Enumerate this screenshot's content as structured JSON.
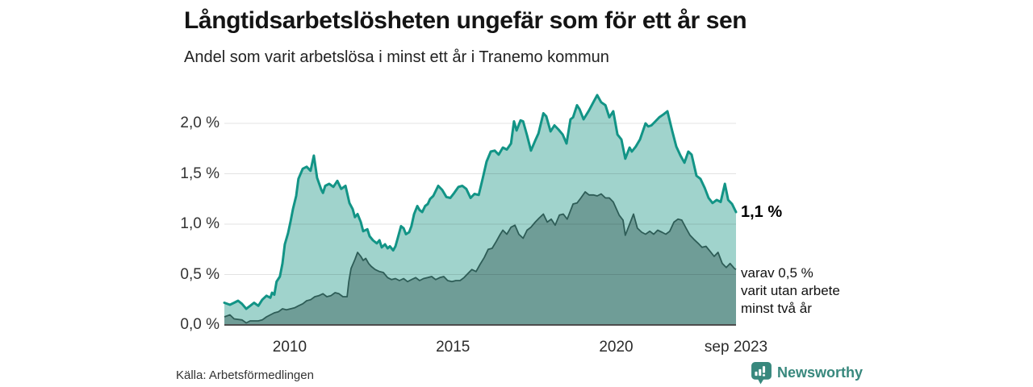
{
  "header": {
    "title": "Långtidsarbetslösheten ungefär som för ett år sen",
    "subtitle": "Andel som varit arbetslösa i minst ett år i Tranemo kommun"
  },
  "annotations": {
    "end_value": "1,1 %",
    "varav_line1": "varav 0,5 %",
    "varav_line2": "varit utan arbete",
    "varav_line3": "minst två år"
  },
  "footer": {
    "source": "Källa: Arbetsförmedlingen",
    "brand": "Newsworthy"
  },
  "colors": {
    "line_1yr": "#129486",
    "fill_1yr": "#a0d3cc",
    "line_2yr": "#2e5d57",
    "fill_2yr": "#6f9d97",
    "gridline": "rgba(0,0,0,0.11)",
    "axis_line": "#4d4d4d",
    "brand_teal": "#38887d"
  },
  "chart_data": {
    "type": "area",
    "title": "Långtidsarbetslösheten ungefär som för ett år sen",
    "subtitle": "Andel som varit arbetslösa i minst ett år i Tranemo kommun",
    "xlabel": "",
    "ylabel": "",
    "xlim": [
      2008.0,
      2023.67
    ],
    "ylim": [
      0,
      2.4
    ],
    "grid": true,
    "legend_position": "annotated-at-line-end",
    "y_ticks": [
      {
        "value": 0.0,
        "label": "0,0 %"
      },
      {
        "value": 0.5,
        "label": "0,5 %"
      },
      {
        "value": 1.0,
        "label": "1,0 %"
      },
      {
        "value": 1.5,
        "label": "1,5 %"
      },
      {
        "value": 2.0,
        "label": "2,0 %"
      }
    ],
    "x_ticks": [
      {
        "value": 2010,
        "label": "2010"
      },
      {
        "value": 2015,
        "label": "2015"
      },
      {
        "value": 2020,
        "label": "2020"
      },
      {
        "value": 2023.67,
        "label": "sep 2023"
      }
    ],
    "series": [
      {
        "name": "Andel arbetslösa minst ett år",
        "end_label": "1,1 %",
        "end_value": 1.1,
        "points": [
          [
            2008.0,
            0.22
          ],
          [
            2008.17,
            0.2
          ],
          [
            2008.3,
            0.22
          ],
          [
            2008.42,
            0.24
          ],
          [
            2008.54,
            0.21
          ],
          [
            2008.67,
            0.16
          ],
          [
            2008.79,
            0.19
          ],
          [
            2008.91,
            0.22
          ],
          [
            2009.04,
            0.19
          ],
          [
            2009.16,
            0.25
          ],
          [
            2009.29,
            0.29
          ],
          [
            2009.41,
            0.27
          ],
          [
            2009.46,
            0.32
          ],
          [
            2009.53,
            0.3
          ],
          [
            2009.6,
            0.43
          ],
          [
            2009.7,
            0.48
          ],
          [
            2009.78,
            0.61
          ],
          [
            2009.85,
            0.8
          ],
          [
            2009.95,
            0.91
          ],
          [
            2010.03,
            1.03
          ],
          [
            2010.1,
            1.15
          ],
          [
            2010.2,
            1.28
          ],
          [
            2010.27,
            1.45
          ],
          [
            2010.4,
            1.55
          ],
          [
            2010.52,
            1.57
          ],
          [
            2010.64,
            1.53
          ],
          [
            2010.74,
            1.68
          ],
          [
            2010.84,
            1.46
          ],
          [
            2010.97,
            1.34
          ],
          [
            2011.02,
            1.31
          ],
          [
            2011.09,
            1.38
          ],
          [
            2011.21,
            1.4
          ],
          [
            2011.34,
            1.37
          ],
          [
            2011.46,
            1.43
          ],
          [
            2011.58,
            1.35
          ],
          [
            2011.71,
            1.38
          ],
          [
            2011.83,
            1.21
          ],
          [
            2011.93,
            1.15
          ],
          [
            2012.0,
            1.07
          ],
          [
            2012.08,
            1.1
          ],
          [
            2012.18,
            1.02
          ],
          [
            2012.25,
            0.93
          ],
          [
            2012.38,
            0.95
          ],
          [
            2012.45,
            0.88
          ],
          [
            2012.55,
            0.84
          ],
          [
            2012.67,
            0.81
          ],
          [
            2012.75,
            0.84
          ],
          [
            2012.82,
            0.77
          ],
          [
            2012.92,
            0.8
          ],
          [
            2013.0,
            0.76
          ],
          [
            2013.07,
            0.78
          ],
          [
            2013.17,
            0.74
          ],
          [
            2013.24,
            0.78
          ],
          [
            2013.31,
            0.86
          ],
          [
            2013.41,
            0.98
          ],
          [
            2013.49,
            0.96
          ],
          [
            2013.56,
            0.9
          ],
          [
            2013.66,
            0.92
          ],
          [
            2013.73,
            0.98
          ],
          [
            2013.81,
            1.1
          ],
          [
            2013.91,
            1.18
          ],
          [
            2013.98,
            1.14
          ],
          [
            2014.06,
            1.12
          ],
          [
            2014.15,
            1.18
          ],
          [
            2014.23,
            1.2
          ],
          [
            2014.3,
            1.25
          ],
          [
            2014.4,
            1.28
          ],
          [
            2014.55,
            1.38
          ],
          [
            2014.67,
            1.34
          ],
          [
            2014.8,
            1.27
          ],
          [
            2014.92,
            1.26
          ],
          [
            2015.04,
            1.31
          ],
          [
            2015.17,
            1.37
          ],
          [
            2015.29,
            1.38
          ],
          [
            2015.41,
            1.35
          ],
          [
            2015.54,
            1.26
          ],
          [
            2015.66,
            1.3
          ],
          [
            2015.79,
            1.29
          ],
          [
            2015.91,
            1.45
          ],
          [
            2016.03,
            1.62
          ],
          [
            2016.16,
            1.72
          ],
          [
            2016.28,
            1.73
          ],
          [
            2016.4,
            1.69
          ],
          [
            2016.53,
            1.76
          ],
          [
            2016.65,
            1.74
          ],
          [
            2016.78,
            1.8
          ],
          [
            2016.87,
            2.02
          ],
          [
            2016.95,
            1.93
          ],
          [
            2017.07,
            2.03
          ],
          [
            2017.15,
            2.02
          ],
          [
            2017.27,
            1.88
          ],
          [
            2017.39,
            1.73
          ],
          [
            2017.52,
            1.83
          ],
          [
            2017.62,
            1.9
          ],
          [
            2017.77,
            2.1
          ],
          [
            2017.86,
            2.07
          ],
          [
            2017.99,
            1.92
          ],
          [
            2018.11,
            1.98
          ],
          [
            2018.23,
            1.94
          ],
          [
            2018.36,
            1.89
          ],
          [
            2018.48,
            1.8
          ],
          [
            2018.6,
            2.04
          ],
          [
            2018.68,
            2.06
          ],
          [
            2018.8,
            2.18
          ],
          [
            2018.88,
            2.14
          ],
          [
            2019.0,
            2.04
          ],
          [
            2019.17,
            2.13
          ],
          [
            2019.3,
            2.21
          ],
          [
            2019.42,
            2.28
          ],
          [
            2019.54,
            2.21
          ],
          [
            2019.67,
            2.18
          ],
          [
            2019.79,
            2.06
          ],
          [
            2019.91,
            2.12
          ],
          [
            2020.04,
            1.89
          ],
          [
            2020.16,
            1.84
          ],
          [
            2020.28,
            1.65
          ],
          [
            2020.41,
            1.76
          ],
          [
            2020.48,
            1.72
          ],
          [
            2020.6,
            1.77
          ],
          [
            2020.73,
            1.84
          ],
          [
            2020.9,
            2.0
          ],
          [
            2020.98,
            1.97
          ],
          [
            2021.08,
            1.98
          ],
          [
            2021.2,
            2.02
          ],
          [
            2021.32,
            2.06
          ],
          [
            2021.45,
            2.09
          ],
          [
            2021.57,
            2.12
          ],
          [
            2021.72,
            1.92
          ],
          [
            2021.84,
            1.77
          ],
          [
            2021.97,
            1.68
          ],
          [
            2022.09,
            1.61
          ],
          [
            2022.21,
            1.72
          ],
          [
            2022.31,
            1.69
          ],
          [
            2022.46,
            1.48
          ],
          [
            2022.58,
            1.45
          ],
          [
            2022.71,
            1.36
          ],
          [
            2022.83,
            1.26
          ],
          [
            2022.95,
            1.21
          ],
          [
            2023.08,
            1.24
          ],
          [
            2023.2,
            1.22
          ],
          [
            2023.33,
            1.4
          ],
          [
            2023.43,
            1.24
          ],
          [
            2023.55,
            1.2
          ],
          [
            2023.67,
            1.12
          ]
        ]
      },
      {
        "name": "Varav utan arbete minst två år",
        "end_label": "varav 0,5 % varit utan arbete minst två år",
        "end_value": 0.5,
        "points": [
          [
            2008.0,
            0.08
          ],
          [
            2008.17,
            0.1
          ],
          [
            2008.3,
            0.06
          ],
          [
            2008.54,
            0.05
          ],
          [
            2008.67,
            0.02
          ],
          [
            2008.79,
            0.04
          ],
          [
            2009.04,
            0.04
          ],
          [
            2009.16,
            0.05
          ],
          [
            2009.29,
            0.08
          ],
          [
            2009.41,
            0.1
          ],
          [
            2009.53,
            0.12
          ],
          [
            2009.65,
            0.13
          ],
          [
            2009.78,
            0.16
          ],
          [
            2009.9,
            0.15
          ],
          [
            2010.03,
            0.16
          ],
          [
            2010.15,
            0.17
          ],
          [
            2010.27,
            0.19
          ],
          [
            2010.4,
            0.21
          ],
          [
            2010.52,
            0.24
          ],
          [
            2010.64,
            0.25
          ],
          [
            2010.77,
            0.28
          ],
          [
            2010.89,
            0.29
          ],
          [
            2011.02,
            0.31
          ],
          [
            2011.14,
            0.28
          ],
          [
            2011.26,
            0.29
          ],
          [
            2011.39,
            0.32
          ],
          [
            2011.51,
            0.31
          ],
          [
            2011.63,
            0.28
          ],
          [
            2011.76,
            0.28
          ],
          [
            2011.81,
            0.43
          ],
          [
            2011.88,
            0.56
          ],
          [
            2012.0,
            0.65
          ],
          [
            2012.08,
            0.72
          ],
          [
            2012.18,
            0.68
          ],
          [
            2012.25,
            0.64
          ],
          [
            2012.33,
            0.66
          ],
          [
            2012.42,
            0.61
          ],
          [
            2012.5,
            0.58
          ],
          [
            2012.62,
            0.55
          ],
          [
            2012.75,
            0.53
          ],
          [
            2012.87,
            0.52
          ],
          [
            2013.0,
            0.47
          ],
          [
            2013.12,
            0.45
          ],
          [
            2013.24,
            0.46
          ],
          [
            2013.36,
            0.44
          ],
          [
            2013.49,
            0.46
          ],
          [
            2013.61,
            0.43
          ],
          [
            2013.73,
            0.45
          ],
          [
            2013.86,
            0.47
          ],
          [
            2013.98,
            0.44
          ],
          [
            2014.1,
            0.46
          ],
          [
            2014.23,
            0.47
          ],
          [
            2014.35,
            0.48
          ],
          [
            2014.47,
            0.45
          ],
          [
            2014.6,
            0.47
          ],
          [
            2014.72,
            0.48
          ],
          [
            2014.84,
            0.44
          ],
          [
            2014.97,
            0.43
          ],
          [
            2015.09,
            0.44
          ],
          [
            2015.22,
            0.44
          ],
          [
            2015.34,
            0.47
          ],
          [
            2015.46,
            0.51
          ],
          [
            2015.58,
            0.55
          ],
          [
            2015.71,
            0.53
          ],
          [
            2015.83,
            0.6
          ],
          [
            2015.96,
            0.67
          ],
          [
            2016.08,
            0.75
          ],
          [
            2016.2,
            0.76
          ],
          [
            2016.33,
            0.83
          ],
          [
            2016.45,
            0.9
          ],
          [
            2016.53,
            0.94
          ],
          [
            2016.65,
            0.9
          ],
          [
            2016.78,
            0.97
          ],
          [
            2016.9,
            0.99
          ],
          [
            2017.02,
            0.9
          ],
          [
            2017.15,
            0.86
          ],
          [
            2017.27,
            0.94
          ],
          [
            2017.39,
            0.97
          ],
          [
            2017.52,
            1.02
          ],
          [
            2017.64,
            1.06
          ],
          [
            2017.77,
            1.1
          ],
          [
            2017.89,
            1.02
          ],
          [
            2018.01,
            1.05
          ],
          [
            2018.13,
            0.99
          ],
          [
            2018.26,
            1.09
          ],
          [
            2018.38,
            1.1
          ],
          [
            2018.5,
            1.05
          ],
          [
            2018.68,
            1.2
          ],
          [
            2018.8,
            1.21
          ],
          [
            2018.92,
            1.26
          ],
          [
            2019.05,
            1.32
          ],
          [
            2019.17,
            1.29
          ],
          [
            2019.3,
            1.29
          ],
          [
            2019.42,
            1.28
          ],
          [
            2019.54,
            1.3
          ],
          [
            2019.67,
            1.26
          ],
          [
            2019.79,
            1.26
          ],
          [
            2019.91,
            1.22
          ],
          [
            2020.09,
            1.09
          ],
          [
            2020.21,
            1.04
          ],
          [
            2020.28,
            0.89
          ],
          [
            2020.53,
            1.1
          ],
          [
            2020.65,
            0.96
          ],
          [
            2020.78,
            0.92
          ],
          [
            2020.9,
            0.9
          ],
          [
            2021.03,
            0.93
          ],
          [
            2021.15,
            0.9
          ],
          [
            2021.27,
            0.94
          ],
          [
            2021.4,
            0.92
          ],
          [
            2021.52,
            0.9
          ],
          [
            2021.64,
            0.93
          ],
          [
            2021.77,
            1.02
          ],
          [
            2021.89,
            1.05
          ],
          [
            2022.01,
            1.04
          ],
          [
            2022.14,
            0.96
          ],
          [
            2022.26,
            0.89
          ],
          [
            2022.38,
            0.85
          ],
          [
            2022.51,
            0.81
          ],
          [
            2022.63,
            0.77
          ],
          [
            2022.75,
            0.78
          ],
          [
            2022.88,
            0.73
          ],
          [
            2023.0,
            0.68
          ],
          [
            2023.12,
            0.72
          ],
          [
            2023.25,
            0.61
          ],
          [
            2023.37,
            0.57
          ],
          [
            2023.49,
            0.61
          ],
          [
            2023.62,
            0.56
          ],
          [
            2023.67,
            0.55
          ]
        ]
      }
    ]
  }
}
